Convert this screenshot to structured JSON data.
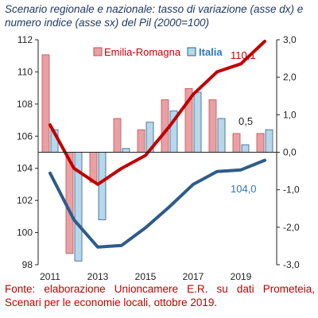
{
  "chart_data": {
    "type": "bar+line",
    "title": "Scenario regionale e nazionale: tasso di variazione (asse dx) e numero indice (asse sx) del Pil (2000=100)",
    "x": [
      2011,
      2012,
      2013,
      2014,
      2015,
      2016,
      2017,
      2018,
      2019,
      2020
    ],
    "x_tick_labels": [
      "2011",
      "2013",
      "2015",
      "2017",
      "2019"
    ],
    "left_axis": {
      "min": 98,
      "max": 112,
      "ticks": [
        "98",
        "100",
        "102",
        "104",
        "106",
        "108",
        "110",
        "112"
      ]
    },
    "right_axis": {
      "min": -3.0,
      "max": 3.0,
      "ticks": [
        "-3,0",
        "-2,0",
        "-1,0",
        "0,0",
        "1,0",
        "2,0",
        "3,0"
      ]
    },
    "bars": [
      {
        "name": "Emilia-Romagna",
        "axis": "right",
        "color": "#e8a0a4",
        "border": "#c0504d",
        "values": [
          2.6,
          -2.7,
          -0.8,
          0.9,
          0.6,
          1.4,
          1.7,
          1.4,
          0.5,
          0.5
        ]
      },
      {
        "name": "Italia",
        "axis": "right",
        "color": "#b7d7ea",
        "border": "#2e5c8a",
        "values": [
          0.6,
          -2.9,
          -1.8,
          0.1,
          0.8,
          1.1,
          1.6,
          0.9,
          0.2,
          0.6
        ]
      }
    ],
    "lines": [
      {
        "name": "Emilia-Romagna",
        "axis": "left",
        "color": "#c00000",
        "values": [
          106.7,
          104.0,
          103.0,
          104.0,
          104.8,
          106.6,
          108.6,
          110.0,
          110.5,
          111.9
        ]
      },
      {
        "name": "Italia",
        "axis": "left",
        "color": "#2e5c8a",
        "values": [
          103.7,
          100.8,
          99.1,
          99.2,
          100.3,
          101.6,
          103.0,
          103.8,
          103.9,
          104.5
        ]
      }
    ],
    "annotations": [
      {
        "text": "110,1",
        "color": "#c00000"
      },
      {
        "text": "0,5",
        "color": "#222222"
      },
      {
        "text": "104,0",
        "color": "#2e75b6"
      }
    ]
  },
  "legend": {
    "er": "Emilia-Romagna",
    "it": "Italia"
  },
  "source": "Fonte: elaborazione Unioncamere E.R. su dati Prometeia, Scenari per le economie locali, ottobre 2019."
}
